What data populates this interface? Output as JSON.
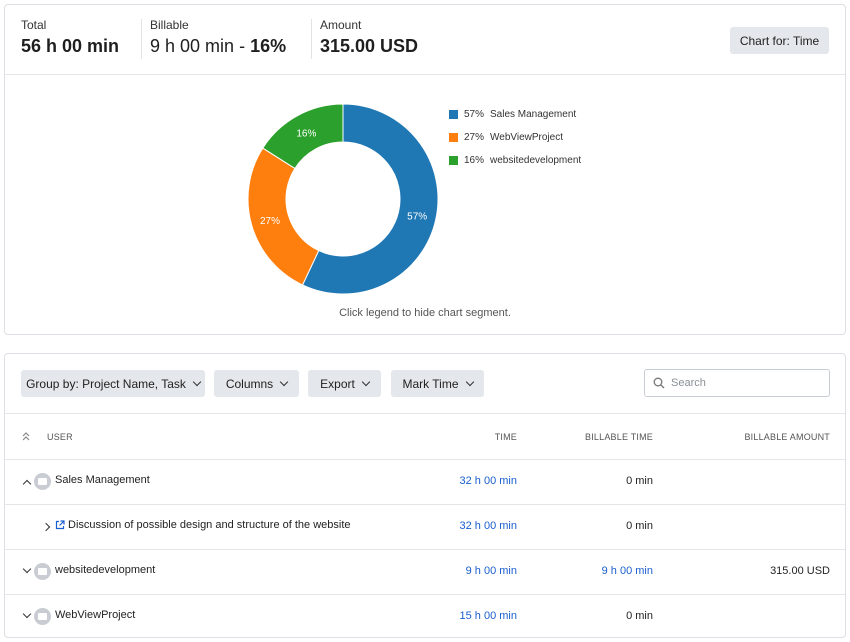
{
  "summary": {
    "total_label": "Total",
    "total_value": "56 h 00 min",
    "billable_label": "Billable",
    "billable_value": "9 h 00 min",
    "billable_sep": " - ",
    "billable_pct": "16%",
    "amount_label": "Amount",
    "amount_value": "315.00 USD",
    "chart_for_label": "Chart for: Time"
  },
  "chart_data": {
    "type": "pie",
    "donut": true,
    "categories": [
      "Sales Management",
      "WebViewProject",
      "websitedevelopment"
    ],
    "values": [
      57,
      27,
      16
    ],
    "labels": [
      "57%",
      "27%",
      "16%"
    ],
    "colors": [
      "#1f77b4",
      "#ff7f0e",
      "#2ca02c"
    ],
    "legend_placement": "right"
  },
  "chart_hint": "Click legend to hide chart segment.",
  "toolbar": {
    "group_by_label": "Group by: Project Name, Task",
    "columns_label": "Columns",
    "export_label": "Export",
    "mark_time_label": "Mark Time",
    "search_placeholder": "Search"
  },
  "table": {
    "headers": {
      "user": "USER",
      "time": "TIME",
      "billable_time": "BILLABLE TIME",
      "billable_amount": "BILLABLE AMOUNT"
    },
    "rows": [
      {
        "name": "Sales Management",
        "time": "32 h 00 min",
        "billable_time": "0 min",
        "billable_amount": ""
      },
      {
        "name": "Discussion of possible design and structure of the website",
        "time": "32 h 00 min",
        "billable_time": "0 min",
        "billable_amount": ""
      },
      {
        "name": "websitedevelopment",
        "time": "9 h 00 min",
        "billable_time": "9 h 00 min",
        "billable_amount": "315.00 USD"
      },
      {
        "name": "WebViewProject",
        "time": "15 h 00 min",
        "billable_time": "0 min",
        "billable_amount": ""
      }
    ]
  }
}
